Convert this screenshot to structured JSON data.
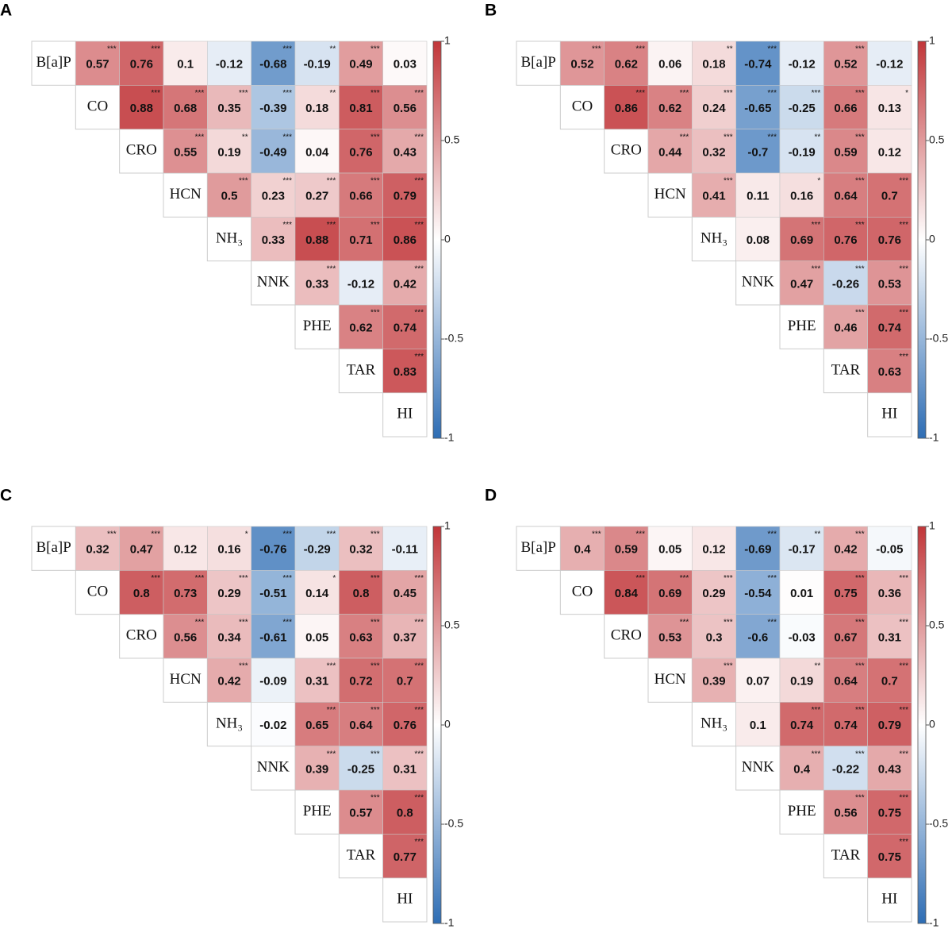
{
  "chart_data": [
    {
      "type": "heatmap",
      "panel": "A",
      "variables": [
        "B[a]P",
        "CO",
        "CRO",
        "HCN",
        "NH₃",
        "NNK",
        "PHE",
        "TAR",
        "HI"
      ],
      "values": [
        [
          0.57,
          0.76,
          0.1,
          -0.12,
          -0.68,
          -0.19,
          0.49,
          0.03
        ],
        [
          0.88,
          0.68,
          0.35,
          -0.39,
          0.18,
          0.81,
          0.56
        ],
        [
          0.55,
          0.19,
          -0.49,
          0.04,
          0.76,
          0.43
        ],
        [
          0.5,
          0.23,
          0.27,
          0.66,
          0.79
        ],
        [
          0.33,
          0.88,
          0.71,
          0.86
        ],
        [
          0.33,
          -0.12,
          0.42
        ],
        [
          0.62,
          0.74
        ],
        [
          0.83
        ]
      ],
      "stars": [
        [
          "***",
          "***",
          null,
          null,
          "***",
          "**",
          "***",
          null
        ],
        [
          "***",
          "***",
          "***",
          "***",
          "**",
          "***",
          "***"
        ],
        [
          "***",
          "**",
          "***",
          null,
          "***",
          "***"
        ],
        [
          "***",
          "***",
          "***",
          "***",
          "***"
        ],
        [
          "***",
          "***",
          "***",
          "***"
        ],
        [
          "***",
          null,
          "***"
        ],
        [
          "***",
          "***"
        ],
        [
          "***"
        ]
      ],
      "zlim": [
        -1,
        1
      ],
      "zticks": [
        -1,
        -0.5,
        0,
        0.5,
        1
      ],
      "colormap": [
        "#2e6db4",
        "#ffffff",
        "#c13639"
      ]
    },
    {
      "type": "heatmap",
      "panel": "B",
      "variables": [
        "B[a]P",
        "CO",
        "CRO",
        "HCN",
        "NH₃",
        "NNK",
        "PHE",
        "TAR",
        "HI"
      ],
      "values": [
        [
          0.52,
          0.62,
          0.06,
          0.18,
          -0.74,
          -0.12,
          0.52,
          -0.12
        ],
        [
          0.86,
          0.62,
          0.24,
          -0.65,
          -0.25,
          0.66,
          0.13
        ],
        [
          0.44,
          0.32,
          -0.7,
          -0.19,
          0.59,
          0.12
        ],
        [
          0.41,
          0.11,
          0.16,
          0.64,
          0.7
        ],
        [
          0.08,
          0.69,
          0.76,
          0.76
        ],
        [
          0.47,
          -0.26,
          0.53
        ],
        [
          0.46,
          0.74
        ],
        [
          0.63
        ]
      ],
      "stars": [
        [
          "***",
          "***",
          null,
          "**",
          "***",
          null,
          "***",
          null
        ],
        [
          "***",
          "***",
          "***",
          "***",
          "***",
          "***",
          "*"
        ],
        [
          "***",
          "***",
          "***",
          "**",
          "***",
          null
        ],
        [
          "***",
          null,
          "*",
          "***",
          "***"
        ],
        [
          null,
          "***",
          "***",
          "***"
        ],
        [
          "***",
          "***",
          "***"
        ],
        [
          "***",
          "***"
        ],
        [
          "***"
        ]
      ],
      "zlim": [
        -1,
        1
      ],
      "zticks": [
        -1,
        -0.5,
        0,
        0.5,
        1
      ],
      "colormap": [
        "#2e6db4",
        "#ffffff",
        "#c13639"
      ]
    },
    {
      "type": "heatmap",
      "panel": "C",
      "variables": [
        "B[a]P",
        "CO",
        "CRO",
        "HCN",
        "NH₃",
        "NNK",
        "PHE",
        "TAR",
        "HI"
      ],
      "values": [
        [
          0.32,
          0.47,
          0.12,
          0.16,
          -0.76,
          -0.29,
          0.32,
          -0.11
        ],
        [
          0.8,
          0.73,
          0.29,
          -0.51,
          0.14,
          0.8,
          0.45
        ],
        [
          0.56,
          0.34,
          -0.61,
          0.05,
          0.63,
          0.37
        ],
        [
          0.42,
          -0.09,
          0.31,
          0.72,
          0.7
        ],
        [
          -0.02,
          0.65,
          0.64,
          0.76
        ],
        [
          0.39,
          -0.25,
          0.31
        ],
        [
          0.57,
          0.8
        ],
        [
          0.77
        ]
      ],
      "stars": [
        [
          "***",
          "***",
          null,
          "*",
          "***",
          "***",
          "***",
          null
        ],
        [
          "***",
          "***",
          "***",
          "***",
          "*",
          "***",
          "***"
        ],
        [
          "***",
          "***",
          "***",
          null,
          "***",
          "***"
        ],
        [
          "***",
          null,
          "***",
          "***",
          "***"
        ],
        [
          null,
          "***",
          "***",
          "***"
        ],
        [
          "***",
          "***",
          "***"
        ],
        [
          "***",
          "***"
        ],
        [
          "***"
        ]
      ],
      "zlim": [
        -1,
        1
      ],
      "zticks": [
        -1,
        -0.5,
        0,
        0.5,
        1
      ],
      "colormap": [
        "#2e6db4",
        "#ffffff",
        "#c13639"
      ]
    },
    {
      "type": "heatmap",
      "panel": "D",
      "variables": [
        "B[a]P",
        "CO",
        "CRO",
        "HCN",
        "NH₃",
        "NNK",
        "PHE",
        "TAR",
        "HI"
      ],
      "values": [
        [
          0.4,
          0.59,
          0.05,
          0.12,
          -0.69,
          -0.17,
          0.42,
          -0.05
        ],
        [
          0.84,
          0.69,
          0.29,
          -0.54,
          0.01,
          0.75,
          0.36
        ],
        [
          0.53,
          0.3,
          -0.6,
          -0.03,
          0.67,
          0.31
        ],
        [
          0.39,
          0.07,
          0.19,
          0.64,
          0.7
        ],
        [
          0.1,
          0.74,
          0.74,
          0.79
        ],
        [
          0.4,
          -0.22,
          0.43
        ],
        [
          0.56,
          0.75
        ],
        [
          0.75
        ]
      ],
      "stars": [
        [
          "***",
          "***",
          null,
          null,
          "***",
          "**",
          "***",
          null
        ],
        [
          "***",
          "***",
          "***",
          "***",
          null,
          "***",
          "***"
        ],
        [
          "***",
          "***",
          "***",
          null,
          "***",
          "***"
        ],
        [
          "***",
          null,
          "**",
          "***",
          "***"
        ],
        [
          null,
          "***",
          "***",
          "***"
        ],
        [
          "***",
          "***",
          "***"
        ],
        [
          "***",
          "***"
        ],
        [
          "***"
        ]
      ],
      "zlim": [
        -1,
        1
      ],
      "zticks": [
        -1,
        -0.5,
        0,
        0.5,
        1
      ],
      "colormap": [
        "#2e6db4",
        "#ffffff",
        "#c13639"
      ]
    }
  ]
}
